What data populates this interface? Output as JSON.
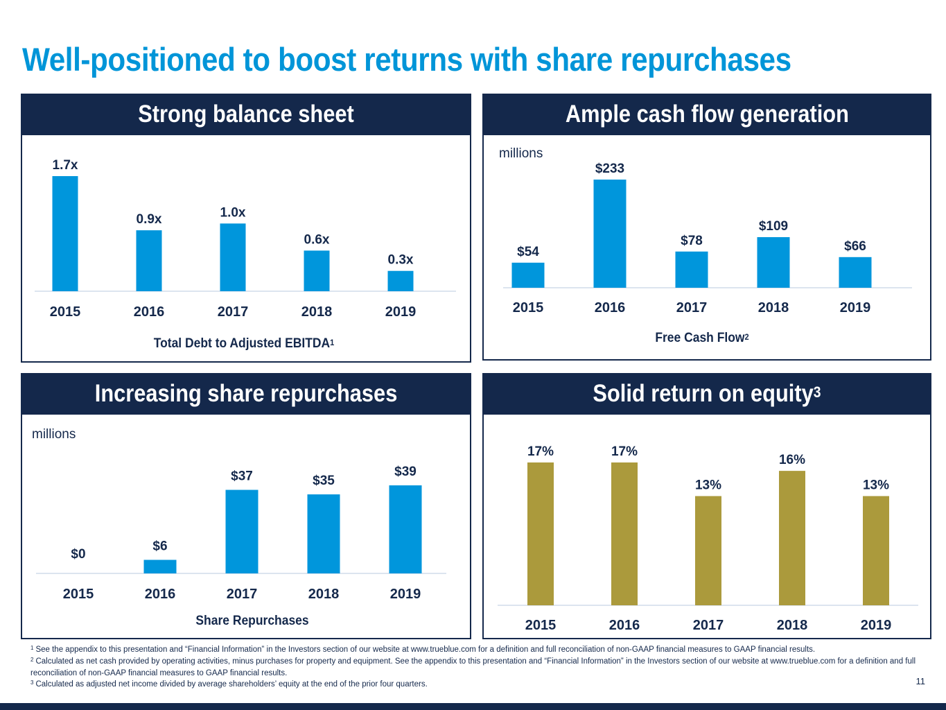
{
  "title": "Well-positioned to boost returns with share repurchases",
  "panels": {
    "balance": {
      "header": "Strong balance sheet",
      "caption": "Total Debt to Adjusted EBITDA",
      "caption_sup": "1"
    },
    "cashflow": {
      "header": "Ample cash flow generation",
      "unit": "millions",
      "caption": "Free Cash Flow",
      "caption_sup": "2"
    },
    "repurchases": {
      "header": "Increasing share repurchases",
      "unit": "millions",
      "caption": "Share Repurchases"
    },
    "roe": {
      "header": "Solid return on equity",
      "header_sup": "3"
    }
  },
  "chart_data": [
    {
      "type": "bar",
      "categories": [
        "2015",
        "2016",
        "2017",
        "2018",
        "2019"
      ],
      "values": [
        1.7,
        0.9,
        1.0,
        0.6,
        0.3
      ],
      "labels": [
        "1.7x",
        "0.9x",
        "1.0x",
        "0.6x",
        "0.3x"
      ],
      "title": "Strong balance sheet",
      "xlabel": "Total Debt to Adjusted EBITDA",
      "color": "#0096dc"
    },
    {
      "type": "bar",
      "categories": [
        "2015",
        "2016",
        "2017",
        "2018",
        "2019"
      ],
      "values": [
        54,
        233,
        78,
        109,
        66
      ],
      "labels": [
        "$54",
        "$233",
        "$78",
        "$109",
        "$66"
      ],
      "title": "Ample cash flow generation",
      "xlabel": "Free Cash Flow",
      "ylabel": "millions",
      "color": "#0096dc"
    },
    {
      "type": "bar",
      "categories": [
        "2015",
        "2016",
        "2017",
        "2018",
        "2019"
      ],
      "values": [
        0,
        6,
        37,
        35,
        39
      ],
      "labels": [
        "$0",
        "$6",
        "$37",
        "$35",
        "$39"
      ],
      "title": "Increasing share repurchases",
      "xlabel": "Share Repurchases",
      "ylabel": "millions",
      "color": "#0096dc"
    },
    {
      "type": "bar",
      "categories": [
        "2015",
        "2016",
        "2017",
        "2018",
        "2019"
      ],
      "values": [
        17,
        17,
        13,
        16,
        13
      ],
      "labels": [
        "17%",
        "17%",
        "13%",
        "16%",
        "13%"
      ],
      "title": "Solid return on equity",
      "color": "#ab9a3c"
    }
  ],
  "footnotes": [
    {
      "num": "1",
      "text": "See the appendix to this presentation and “Financial Information” in the Investors section of our website at www.trueblue.com for a definition and full reconciliation of non-GAAP financial measures to GAAP financial results."
    },
    {
      "num": "2",
      "text": "Calculated as net cash provided by operating activities, minus purchases for property and equipment. See the appendix to this presentation and “Financial Information” in the Investors section of our website at www.trueblue.com for a definition and full reconciliation of non-GAAP financial measures to GAAP financial results."
    },
    {
      "num": "3",
      "text": "Calculated as adjusted net income divided by average shareholders’ equity at the end of the prior four quarters."
    }
  ],
  "page_number": "11"
}
